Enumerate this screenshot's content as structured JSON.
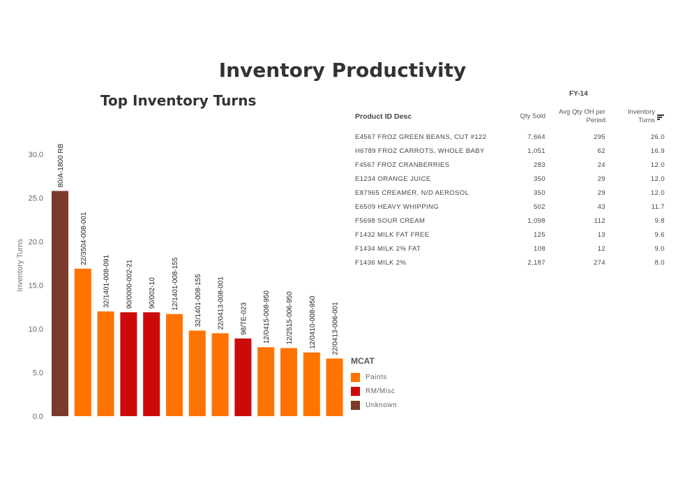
{
  "dashboard": {
    "title": "Inventory Productivity"
  },
  "chart_data": {
    "type": "bar",
    "title": "Top Inventory Turns",
    "xlabel": "",
    "ylabel": "Inventory Turns",
    "ylim": [
      0,
      32
    ],
    "yticks": [
      "0.0",
      "5.0",
      "10.0",
      "15.0",
      "20.0",
      "25.0",
      "30.0"
    ],
    "grid": false,
    "legend_position": "right",
    "categories": [
      "80/A-1800 RB",
      "22/3504-008-001",
      "32/1401-008-091",
      "90/0000-002-21",
      "90/002-10",
      "12/1401-008-155",
      "32/1401-008-155",
      "22/0413-008-001",
      "98/TE-023",
      "12/0415-008-950",
      "12/2515-006-950",
      "12/0410-008-950",
      "22/0413-006-001"
    ],
    "values": [
      25.8,
      16.9,
      12.0,
      11.9,
      11.9,
      11.7,
      9.8,
      9.5,
      8.9,
      7.9,
      7.8,
      7.3,
      6.6
    ],
    "mcat": [
      "Unknown",
      "Paints",
      "Paints",
      "RM/Misc",
      "RM/Misc",
      "Paints",
      "Paints",
      "Paints",
      "RM/Misc",
      "Paints",
      "Paints",
      "Paints",
      "Paints"
    ],
    "legend": {
      "title": "MCAT",
      "items": [
        {
          "name": "Paints",
          "color": "#FF7300"
        },
        {
          "name": "RM/Misc",
          "color": "#CC0A0A"
        },
        {
          "name": "Unknown",
          "color": "#7B3A2A"
        }
      ]
    }
  },
  "table": {
    "fiscal_year": "FY-14",
    "headers": {
      "desc": "Product ID Desc",
      "sold": "Qty Sold",
      "avg_line1": "Avg Qty OH per",
      "avg_line2": "Period",
      "turns_line1": "Inventory",
      "turns_line2": "Turns"
    },
    "sort_icon": "sort-descending-icon",
    "rows": [
      {
        "id": "E4567   FROZ GREEN BEANS, CUT #122",
        "sold": "7,664",
        "avg": "295",
        "turns": "26.0"
      },
      {
        "id": "H6789   FROZ CARROTS, WHOLE BABY",
        "sold": "1,051",
        "avg": "62",
        "turns": "16.9"
      },
      {
        "id": "F4567   FROZ CRANBERRIES",
        "sold": "283",
        "avg": "24",
        "turns": "12.0"
      },
      {
        "id": "E1234   ORANGE JUICE",
        "sold": "350",
        "avg": "29",
        "turns": "12.0"
      },
      {
        "id": "E87965 CREAMER, N/D AEROSOL",
        "sold": "350",
        "avg": "29",
        "turns": "12.0"
      },
      {
        "id": "E6509   HEAVY WHIPPING",
        "sold": "502",
        "avg": "43",
        "turns": "11.7"
      },
      {
        "id": "F5698   SOUR CREAM",
        "sold": "1,098",
        "avg": "112",
        "turns": "9.8"
      },
      {
        "id": "F1432   MILK FAT FREE",
        "sold": "125",
        "avg": "13",
        "turns": "9.6"
      },
      {
        "id": "F1434   MILK 2% FAT",
        "sold": "108",
        "avg": "12",
        "turns": "9.0"
      },
      {
        "id": "F1436   MILK 2%",
        "sold": "2,187",
        "avg": "274",
        "turns": "8.0"
      }
    ]
  }
}
